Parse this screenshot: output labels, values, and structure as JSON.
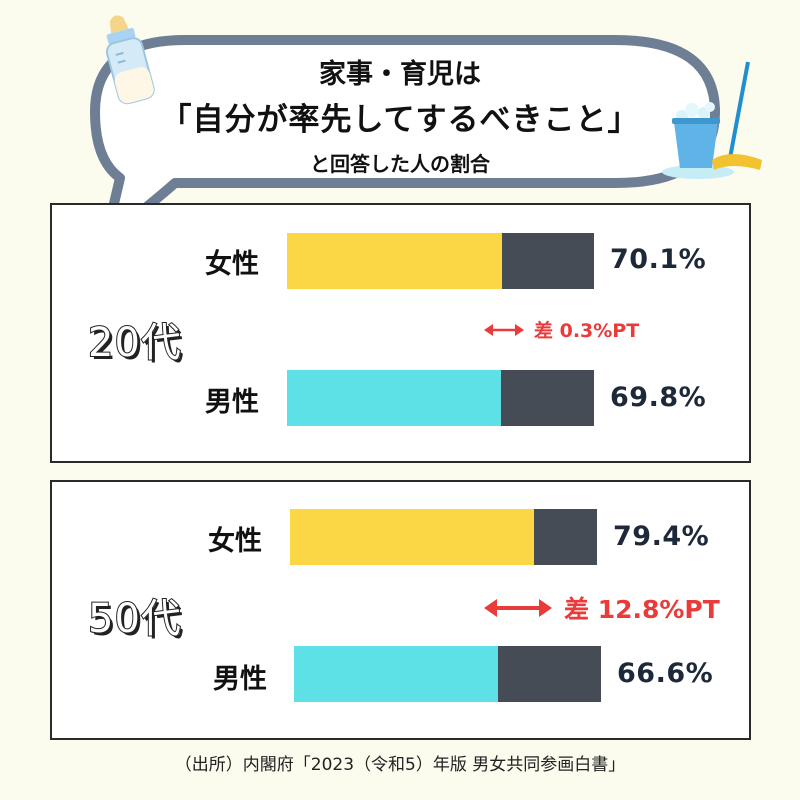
{
  "title": {
    "line1": "家事・育児は",
    "line2": "「自分が率先してするべきこと」",
    "line3": "と回答した人の割合"
  },
  "colors": {
    "female": "#fbd746",
    "male": "#5de0e6",
    "remainder": "#454c55",
    "diff": "#ea3b3b"
  },
  "chart_data": [
    {
      "type": "bar",
      "group": "20代",
      "categories": [
        "女性",
        "男性"
      ],
      "values": [
        70.1,
        69.8
      ],
      "value_labels": [
        "70.1%",
        "69.8%"
      ],
      "ylim": [
        0,
        100
      ],
      "difference": "差 0.3%PT"
    },
    {
      "type": "bar",
      "group": "50代",
      "categories": [
        "女性",
        "男性"
      ],
      "values": [
        79.4,
        66.6
      ],
      "value_labels": [
        "79.4%",
        "66.6%"
      ],
      "ylim": [
        0,
        100
      ],
      "difference": "差 12.8%PT"
    }
  ],
  "source": "（出所）内閣府「2023（令和5）年版 男女共同参画白書」"
}
